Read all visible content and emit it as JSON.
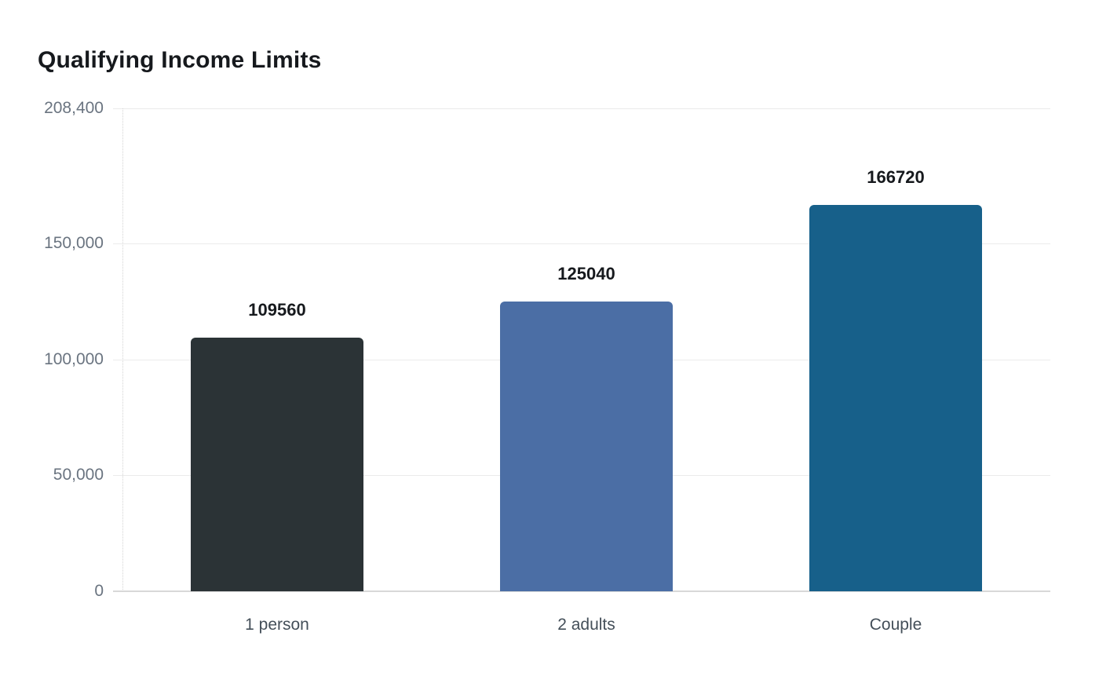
{
  "chart_data": {
    "type": "bar",
    "title": "Qualifying Income Limits",
    "categories": [
      "1 person",
      "2 adults",
      "Couple"
    ],
    "series": [
      {
        "name": "Qualifying Income Limits",
        "values": [
          109560,
          125040,
          166720
        ]
      }
    ],
    "value_labels": [
      "109560",
      "125040",
      "166720"
    ],
    "bar_colors": [
      "#2b3336",
      "#4b6ea5",
      "#17608a"
    ],
    "xlabel": "",
    "ylabel": "",
    "ylim": [
      0,
      208400
    ],
    "y_ticks": [
      {
        "value": 0,
        "label": "0"
      },
      {
        "value": 50000,
        "label": "50,000"
      },
      {
        "value": 100000,
        "label": "100,000"
      },
      {
        "value": 150000,
        "label": "150,000"
      },
      {
        "value": 208400,
        "label": "208,400"
      }
    ],
    "grid": true,
    "legend_position": "none",
    "data_labels_shown": true
  },
  "palette": {
    "background": "#ffffff",
    "title_color": "#16191d",
    "value_label_color": "#16191d",
    "axis_tick_color": "#6a7480",
    "category_label_color": "#444f59",
    "gridline_color": "#ebebeb",
    "baseline_color": "#d8d8d8",
    "axis_line_color": "#d4d4d4"
  }
}
